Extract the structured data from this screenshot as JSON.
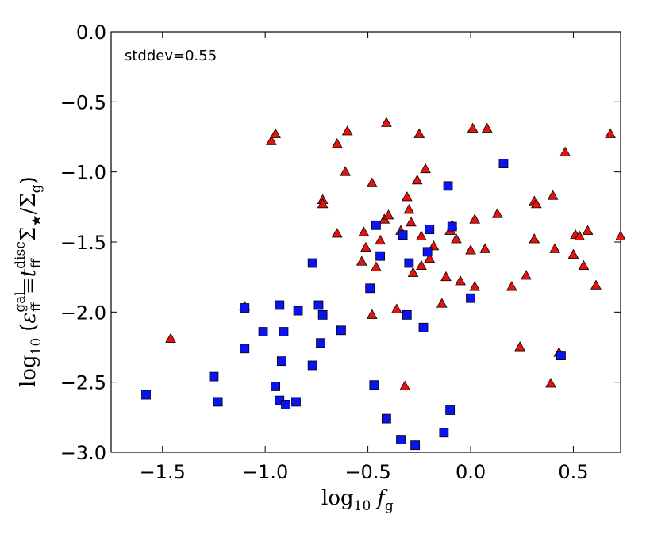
{
  "chart_data": {
    "type": "scatter",
    "title": "",
    "annotation": "stddev=0.55",
    "xlabel": {
      "main": "log",
      "sub": "10",
      "var": "f",
      "var_sub": "g"
    },
    "ylabel": {
      "main": "log",
      "sub": "10",
      "lparen": "(",
      "eps": "ε",
      "eps_sup": "gal",
      "eps_sub": "ff",
      "equiv": "≡",
      "t": "t",
      "t_sup": "disc",
      "t_sub": "ff",
      "sigma_dot": "Σ̇",
      "star": "★",
      "slash": "/",
      "sigma": "Σ",
      "sigma_sub": "g",
      "rparen": ")"
    },
    "xlim": [
      -1.75,
      0.73
    ],
    "ylim": [
      -3.0,
      0.0
    ],
    "xticks": [
      {
        "value": -1.5,
        "label": "−1.5"
      },
      {
        "value": -1.0,
        "label": "−1.0"
      },
      {
        "value": -0.5,
        "label": "−0.5"
      },
      {
        "value": 0.0,
        "label": "0.0"
      },
      {
        "value": 0.5,
        "label": "0.5"
      }
    ],
    "yticks": [
      {
        "value": 0.0,
        "label": "0.0"
      },
      {
        "value": -0.5,
        "label": "−0.5"
      },
      {
        "value": -1.0,
        "label": "−1.0"
      },
      {
        "value": -1.5,
        "label": "−1.5"
      },
      {
        "value": -2.0,
        "label": "−2.0"
      },
      {
        "value": -2.5,
        "label": "−2.5"
      },
      {
        "value": -3.0,
        "label": "−3.0"
      }
    ],
    "series": [
      {
        "name": "red-triangles",
        "marker": "triangle",
        "color": "#e8120c",
        "points": [
          [
            -1.46,
            -2.19
          ],
          [
            -1.1,
            -1.96
          ],
          [
            -0.97,
            -0.78
          ],
          [
            -0.95,
            -0.73
          ],
          [
            -0.72,
            -1.2
          ],
          [
            -0.72,
            -1.23
          ],
          [
            -0.65,
            -1.44
          ],
          [
            -0.65,
            -0.8
          ],
          [
            -0.61,
            -1.0
          ],
          [
            -0.6,
            -0.71
          ],
          [
            -0.53,
            -1.64
          ],
          [
            -0.52,
            -1.43
          ],
          [
            -0.51,
            -1.54
          ],
          [
            -0.48,
            -1.08
          ],
          [
            -0.48,
            -2.02
          ],
          [
            -0.46,
            -1.68
          ],
          [
            -0.44,
            -1.49
          ],
          [
            -0.42,
            -1.34
          ],
          [
            -0.41,
            -0.65
          ],
          [
            -0.4,
            -1.31
          ],
          [
            -0.36,
            -1.98
          ],
          [
            -0.34,
            -1.42
          ],
          [
            -0.32,
            -2.53
          ],
          [
            -0.31,
            -1.18
          ],
          [
            -0.3,
            -1.27
          ],
          [
            -0.29,
            -1.36
          ],
          [
            -0.28,
            -1.72
          ],
          [
            -0.26,
            -1.06
          ],
          [
            -0.25,
            -0.73
          ],
          [
            -0.24,
            -1.46
          ],
          [
            -0.24,
            -1.67
          ],
          [
            -0.22,
            -0.98
          ],
          [
            -0.2,
            -1.62
          ],
          [
            -0.18,
            -1.53
          ],
          [
            -0.14,
            -1.94
          ],
          [
            -0.12,
            -1.75
          ],
          [
            -0.1,
            -1.42
          ],
          [
            -0.09,
            -1.38
          ],
          [
            -0.07,
            -1.48
          ],
          [
            -0.05,
            -1.78
          ],
          [
            0.0,
            -1.56
          ],
          [
            0.01,
            -0.69
          ],
          [
            0.02,
            -1.34
          ],
          [
            0.02,
            -1.82
          ],
          [
            0.07,
            -1.55
          ],
          [
            0.08,
            -0.69
          ],
          [
            0.13,
            -1.3
          ],
          [
            0.2,
            -1.82
          ],
          [
            0.24,
            -2.25
          ],
          [
            0.27,
            -1.74
          ],
          [
            0.31,
            -1.21
          ],
          [
            0.31,
            -1.48
          ],
          [
            0.32,
            -1.23
          ],
          [
            0.39,
            -2.51
          ],
          [
            0.4,
            -1.17
          ],
          [
            0.41,
            -1.55
          ],
          [
            0.43,
            -2.29
          ],
          [
            0.46,
            -0.86
          ],
          [
            0.5,
            -1.59
          ],
          [
            0.51,
            -1.45
          ],
          [
            0.53,
            -1.46
          ],
          [
            0.55,
            -1.67
          ],
          [
            0.57,
            -1.42
          ],
          [
            0.61,
            -1.81
          ],
          [
            0.68,
            -0.73
          ],
          [
            0.73,
            -1.46
          ]
        ]
      },
      {
        "name": "blue-squares",
        "marker": "square",
        "color": "#0a14f0",
        "points": [
          [
            -1.58,
            -2.59
          ],
          [
            -1.25,
            -2.46
          ],
          [
            -1.23,
            -2.64
          ],
          [
            -1.1,
            -1.97
          ],
          [
            -1.1,
            -2.26
          ],
          [
            -1.01,
            -2.14
          ],
          [
            -0.95,
            -2.53
          ],
          [
            -0.93,
            -1.95
          ],
          [
            -0.93,
            -2.63
          ],
          [
            -0.92,
            -2.35
          ],
          [
            -0.91,
            -2.14
          ],
          [
            -0.9,
            -2.66
          ],
          [
            -0.85,
            -2.64
          ],
          [
            -0.84,
            -1.99
          ],
          [
            -0.77,
            -1.65
          ],
          [
            -0.77,
            -2.38
          ],
          [
            -0.74,
            -1.95
          ],
          [
            -0.73,
            -2.22
          ],
          [
            -0.72,
            -2.02
          ],
          [
            -0.63,
            -2.13
          ],
          [
            -0.49,
            -1.83
          ],
          [
            -0.47,
            -2.52
          ],
          [
            -0.46,
            -1.38
          ],
          [
            -0.44,
            -1.6
          ],
          [
            -0.41,
            -2.76
          ],
          [
            -0.34,
            -2.91
          ],
          [
            -0.33,
            -1.45
          ],
          [
            -0.31,
            -2.02
          ],
          [
            -0.3,
            -1.65
          ],
          [
            -0.27,
            -2.95
          ],
          [
            -0.23,
            -2.11
          ],
          [
            -0.21,
            -1.57
          ],
          [
            -0.2,
            -1.41
          ],
          [
            -0.13,
            -2.86
          ],
          [
            -0.11,
            -1.1
          ],
          [
            -0.1,
            -2.7
          ],
          [
            -0.09,
            -1.39
          ],
          [
            0.0,
            -1.9
          ],
          [
            0.16,
            -0.94
          ],
          [
            0.44,
            -2.31
          ]
        ]
      }
    ]
  }
}
